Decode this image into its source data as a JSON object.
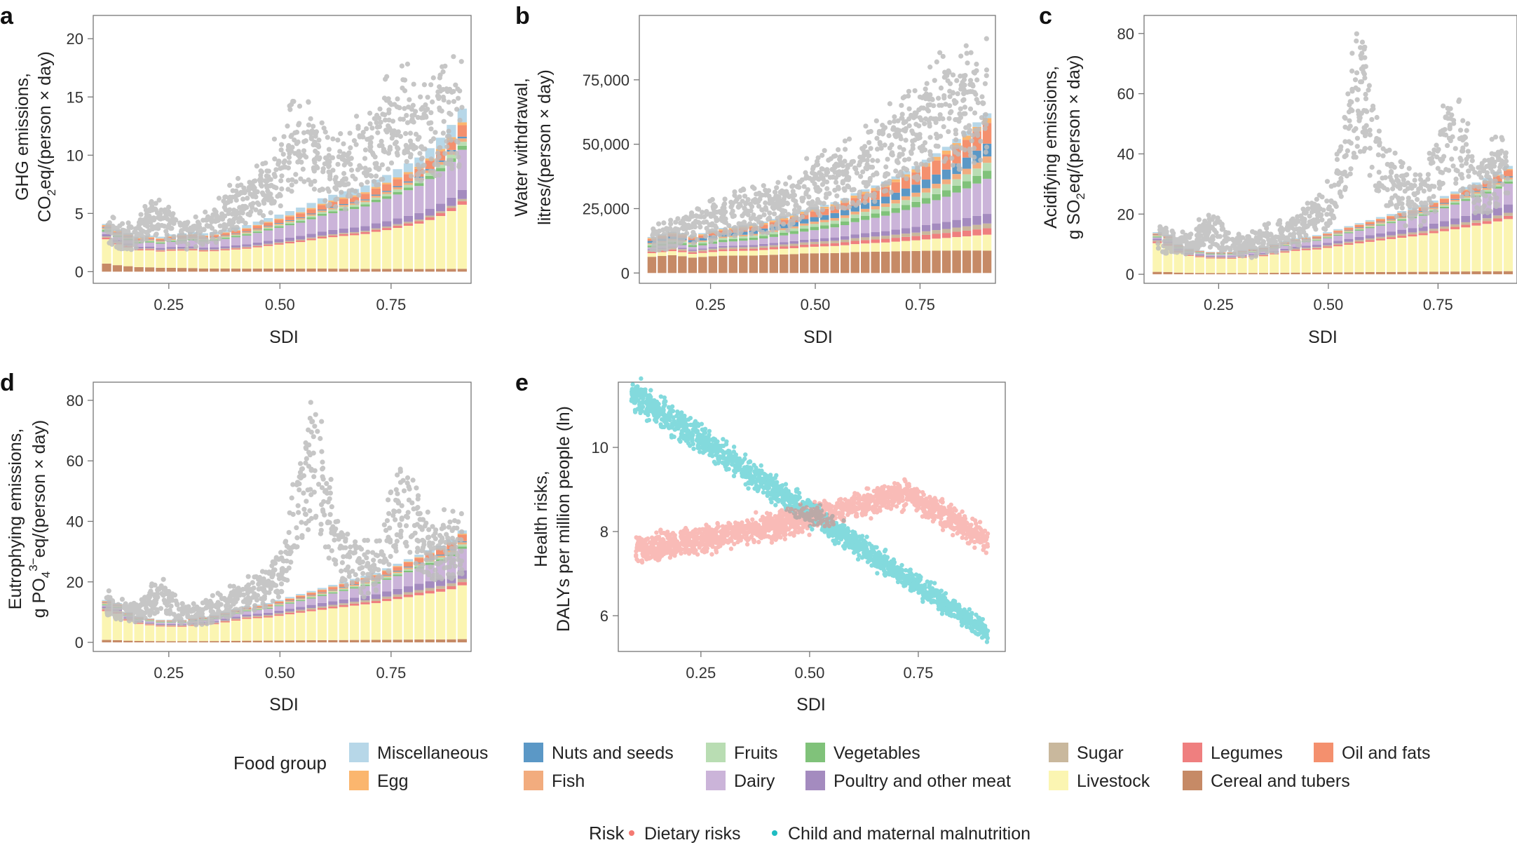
{
  "figure": {
    "food_groups_title": "Food group",
    "risk_title": "Risk"
  },
  "food_groups": [
    {
      "id": "misc",
      "label": "Miscellaneous",
      "color": "#b7d7e8"
    },
    {
      "id": "egg",
      "label": "Egg",
      "color": "#fbb66e"
    },
    {
      "id": "nuts",
      "label": "Nuts and seeds",
      "color": "#5b98c6"
    },
    {
      "id": "fish",
      "label": "Fish",
      "color": "#f2ac7e"
    },
    {
      "id": "fruits",
      "label": "Fruits",
      "color": "#b9ddb3"
    },
    {
      "id": "dairy",
      "label": "Dairy",
      "color": "#cbb4d9"
    },
    {
      "id": "vegetables",
      "label": "Vegetables",
      "color": "#80c27a"
    },
    {
      "id": "poultry",
      "label": "Poultry and other meat",
      "color": "#a48bbf"
    },
    {
      "id": "sugar",
      "label": "Sugar",
      "color": "#c9b89d"
    },
    {
      "id": "livestock",
      "label": "Livestock",
      "color": "#fbf5b2"
    },
    {
      "id": "legumes",
      "label": "Legumes",
      "color": "#ef7f7f"
    },
    {
      "id": "cereal",
      "label": "Cereal and tubers",
      "color": "#c68a66"
    },
    {
      "id": "oil",
      "label": "Oil and fats",
      "color": "#f4906e"
    }
  ],
  "risks": [
    {
      "id": "dietary",
      "label": "Dietary risks",
      "color": "#f47a72"
    },
    {
      "id": "child",
      "label": "Child and maternal malnutrition",
      "color": "#1fbcc2"
    }
  ],
  "colors": {
    "scatter_gray": "#bdbdbd",
    "axis": "#777777"
  },
  "chart_data": [
    {
      "panel": "a",
      "type": "bar",
      "title": "",
      "ylabel_line1": "GHG emissions,",
      "ylabel_line2_pre": "CO",
      "ylabel_line2_sub": "2",
      "ylabel_line2_post": "eq/(person × day)",
      "xlabel": "SDI",
      "xlim": [
        0.08,
        0.93
      ],
      "ylim": [
        -1.0,
        22.0
      ],
      "xticks": [
        0.25,
        0.5,
        0.75
      ],
      "xtick_labels": [
        "0.25",
        "0.50",
        "0.75"
      ],
      "yticks": [
        0,
        5,
        10,
        15,
        20
      ],
      "ytick_labels": [
        "0",
        "5",
        "10",
        "15",
        "20"
      ],
      "bar_x_range": [
        0.11,
        0.91
      ],
      "bar_count": 34,
      "totals": [
        4.1,
        3.6,
        3.3,
        3.0,
        3.1,
        3.0,
        3.2,
        3.3,
        3.4,
        3.3,
        3.4,
        3.6,
        3.8,
        4.0,
        4.3,
        4.6,
        4.9,
        5.2,
        5.5,
        5.9,
        6.3,
        6.6,
        6.9,
        7.1,
        7.4,
        7.9,
        8.3,
        8.8,
        9.3,
        9.8,
        10.6,
        11.5,
        12.6,
        14.0
      ],
      "composition": {
        "cereal": [
          0.7,
          0.25
        ],
        "livestock": [
          2.1,
          5.6
        ],
        "legumes": [
          0.15,
          0.3
        ],
        "sugar": [
          0.1,
          0.2
        ],
        "poultry": [
          0.2,
          0.8
        ],
        "dairy": [
          0.2,
          3.5
        ],
        "vegetables": [
          0.15,
          0.35
        ],
        "fruits": [
          0.1,
          0.35
        ],
        "fish": [
          0.1,
          0.3
        ],
        "nuts": [
          0.05,
          0.15
        ],
        "oil": [
          0.1,
          1.0
        ],
        "egg": [
          0.08,
          0.25
        ],
        "misc": [
          0.1,
          1.2
        ]
      },
      "scatter_description": "Country-year observations; grey points",
      "scatter_trend": [
        4.2,
        3.5,
        3.8,
        5.5,
        5.0,
        3.8,
        4.0,
        4.5,
        6.0,
        7.0,
        7.5,
        9.0,
        11.0,
        13.5,
        12.0,
        9.5,
        10.0,
        11.5,
        12.5,
        14.5,
        16.0,
        13.0,
        14.5,
        16.0,
        15.0
      ]
    },
    {
      "panel": "b",
      "type": "bar",
      "ylabel_line1": "Water withdrawal,",
      "ylabel_line2": "litres/(person × day)",
      "xlabel": "SDI",
      "xlim": [
        0.08,
        0.93
      ],
      "ylim": [
        -4000,
        100000
      ],
      "xticks": [
        0.25,
        0.5,
        0.75
      ],
      "xtick_labels": [
        "0.25",
        "0.50",
        "0.75"
      ],
      "yticks": [
        0,
        25000,
        50000,
        75000
      ],
      "ytick_labels": [
        "0",
        "25,000",
        "50,000",
        "75,000"
      ],
      "bar_x_range": [
        0.11,
        0.91
      ],
      "bar_count": 34,
      "totals": [
        14000,
        15000,
        16000,
        15500,
        14500,
        15500,
        16500,
        17500,
        18000,
        18500,
        19000,
        20000,
        21000,
        22000,
        23000,
        24500,
        25500,
        26500,
        27500,
        29000,
        31000,
        32500,
        34000,
        35500,
        37500,
        39500,
        41500,
        44000,
        46500,
        49000,
        52000,
        55000,
        58500,
        62000
      ],
      "composition": {
        "cereal": [
          0.45,
          0.14
        ],
        "livestock": [
          0.1,
          0.1
        ],
        "legumes": [
          0.04,
          0.04
        ],
        "sugar": [
          0.04,
          0.03
        ],
        "poultry": [
          0.03,
          0.06
        ],
        "dairy": [
          0.05,
          0.22
        ],
        "vegetables": [
          0.05,
          0.05
        ],
        "fruits": [
          0.04,
          0.05
        ],
        "fish": [
          0.03,
          0.04
        ],
        "nuts": [
          0.06,
          0.08
        ],
        "oil": [
          0.05,
          0.13
        ],
        "egg": [
          0.03,
          0.03
        ],
        "misc": [
          0.03,
          0.03
        ]
      },
      "scatter_description": "Country-year observations; grey points",
      "scatter_trend": [
        16000,
        17000,
        19000,
        22000,
        24000,
        26000,
        27000,
        28000,
        29000,
        30000,
        33000,
        37000,
        41000,
        44000,
        43000,
        46000,
        52000,
        56000,
        60000,
        65000,
        70000,
        75000,
        72000,
        78000,
        85000
      ]
    },
    {
      "panel": "c",
      "type": "bar",
      "ylabel_line1": "Acidifying emissions,",
      "ylabel_line2_pre": "g SO",
      "ylabel_line2_sub": "2",
      "ylabel_line2_post": "eq/(person × day)",
      "xlabel": "SDI",
      "xlim": [
        0.08,
        0.93
      ],
      "ylim": [
        -3,
        86
      ],
      "xticks": [
        0.25,
        0.5,
        0.75
      ],
      "xtick_labels": [
        "0.25",
        "0.50",
        "0.75"
      ],
      "yticks": [
        0,
        20,
        40,
        60,
        80
      ],
      "ytick_labels": [
        "0",
        "20",
        "40",
        "60",
        "80"
      ],
      "bar_x_range": [
        0.11,
        0.91
      ],
      "bar_count": 34,
      "totals": [
        14,
        13,
        10,
        8.5,
        8,
        7.5,
        7.5,
        7.5,
        8,
        8.5,
        9,
        10,
        11,
        12,
        12.5,
        13,
        14,
        15,
        16,
        17,
        18,
        19,
        20,
        21,
        22,
        23,
        24.5,
        26,
        27.5,
        29,
        30.5,
        32,
        34,
        36
      ],
      "composition": {
        "cereal": [
          0.06,
          0.03
        ],
        "livestock": [
          0.7,
          0.5
        ],
        "legumes": [
          0.04,
          0.03
        ],
        "sugar": [
          0.03,
          0.03
        ],
        "poultry": [
          0.04,
          0.08
        ],
        "dairy": [
          0.03,
          0.2
        ],
        "vegetables": [
          0.02,
          0.02
        ],
        "fruits": [
          0.02,
          0.02
        ],
        "fish": [
          0.02,
          0.02
        ],
        "nuts": [
          0.01,
          0.01
        ],
        "oil": [
          0.02,
          0.06
        ],
        "egg": [
          0.01,
          0.01
        ],
        "misc": [
          0.03,
          0.03
        ]
      },
      "scatter_description": "Country-year observations; grey points",
      "scatter_trend": [
        15,
        12,
        12,
        16,
        18,
        12,
        11,
        13,
        15,
        17,
        20,
        24,
        30,
        55,
        75,
        50,
        35,
        30,
        28,
        40,
        55,
        45,
        35,
        38,
        40
      ]
    },
    {
      "panel": "d",
      "type": "bar",
      "ylabel_line1": "Eutrophying emissions,",
      "ylabel_line2_pre": "g PO",
      "ylabel_line2_sub": "4",
      "ylabel_line2_sup": "3−",
      "ylabel_line2_post": "eq/(person × day)",
      "xlabel": "SDI",
      "xlim": [
        0.08,
        0.93
      ],
      "ylim": [
        -3,
        86
      ],
      "xticks": [
        0.25,
        0.5,
        0.75
      ],
      "xtick_labels": [
        "0.25",
        "0.50",
        "0.75"
      ],
      "yticks": [
        0,
        20,
        40,
        60,
        80
      ],
      "ytick_labels": [
        "0",
        "20",
        "40",
        "60",
        "80"
      ],
      "bar_x_range": [
        0.11,
        0.91
      ],
      "bar_count": 34,
      "totals": [
        14,
        13,
        10,
        8.5,
        8,
        7.5,
        7.5,
        7.5,
        8,
        8.5,
        9,
        10,
        11,
        12,
        12.5,
        13,
        14,
        15,
        16,
        17,
        18,
        19,
        20,
        21,
        22,
        23,
        24.5,
        26,
        27.5,
        29,
        30.5,
        32,
        34,
        37
      ],
      "composition": {
        "cereal": [
          0.06,
          0.03
        ],
        "livestock": [
          0.7,
          0.5
        ],
        "legumes": [
          0.04,
          0.03
        ],
        "sugar": [
          0.03,
          0.03
        ],
        "poultry": [
          0.04,
          0.08
        ],
        "dairy": [
          0.03,
          0.2
        ],
        "vegetables": [
          0.02,
          0.02
        ],
        "fruits": [
          0.02,
          0.02
        ],
        "fish": [
          0.02,
          0.02
        ],
        "nuts": [
          0.01,
          0.01
        ],
        "oil": [
          0.02,
          0.06
        ],
        "egg": [
          0.01,
          0.01
        ],
        "misc": [
          0.03,
          0.03
        ]
      },
      "scatter_description": "Country-year observations; grey points",
      "scatter_trend": [
        15,
        12,
        12,
        16,
        18,
        12,
        11,
        13,
        15,
        17,
        20,
        24,
        30,
        55,
        75,
        50,
        35,
        30,
        28,
        40,
        55,
        45,
        35,
        38,
        40
      ]
    },
    {
      "panel": "e",
      "type": "scatter",
      "ylabel_line1": "Health risks,",
      "ylabel_line2": "DALYs per million people (ln)",
      "xlabel": "SDI",
      "xlim": [
        0.06,
        0.95
      ],
      "ylim": [
        5.15,
        11.55
      ],
      "xticks": [
        0.25,
        0.5,
        0.75
      ],
      "xtick_labels": [
        "0.25",
        "0.50",
        "0.75"
      ],
      "yticks": [
        6,
        8,
        10
      ],
      "ytick_labels": [
        "6",
        "8",
        "10"
      ],
      "series": [
        {
          "name": "Child and maternal malnutrition",
          "color_key": "child",
          "start": [
            0.09,
            11.3
          ],
          "end": [
            0.91,
            5.6
          ]
        },
        {
          "name": "Dietary risks",
          "color_key": "dietary",
          "start": [
            0.1,
            7.6
          ],
          "end": [
            0.91,
            7.8
          ],
          "peak": [
            0.72,
            8.9
          ]
        }
      ]
    }
  ]
}
